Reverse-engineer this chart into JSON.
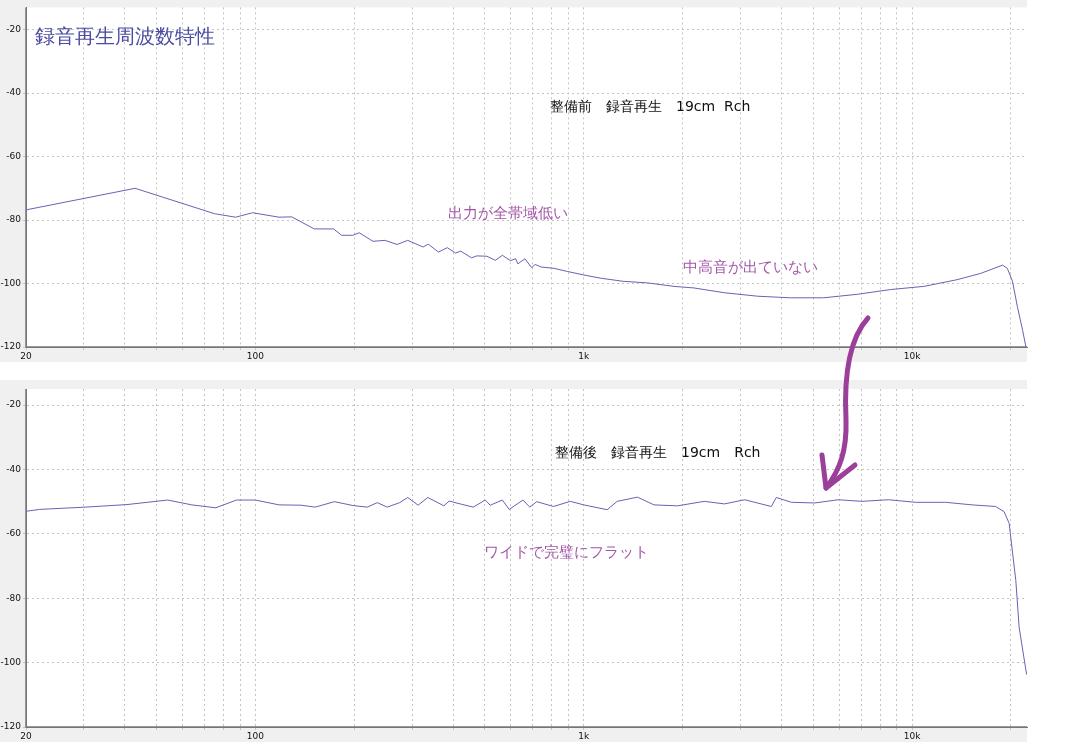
{
  "chart_data": [
    {
      "type": "line",
      "title": "録音再生周波数特性",
      "annotations": [
        "整備前　録音再生　19cm  Rch",
        "出力が全帯域低い",
        "中高音が出ていない"
      ],
      "x": [
        20,
        43,
        75,
        87,
        98,
        118,
        129,
        151,
        173,
        183,
        198,
        207,
        228,
        248,
        270,
        291,
        324,
        336,
        361,
        384,
        407,
        422,
        455,
        472,
        507,
        538,
        565,
        598,
        620,
        630,
        662,
        694,
        711,
        742,
        811,
        891,
        1000,
        1123,
        1318,
        1563,
        1884,
        2168,
        2679,
        3388,
        4266,
        5377,
        6805,
        8600,
        10865,
        13710,
        16200,
        18870,
        19510,
        20230,
        20960,
        21720,
        22230
      ],
      "series": [
        {
          "color": "#6464b4",
          "values": [
            -76.8,
            -70,
            -78,
            -79.1,
            -77.7,
            -79.1,
            -79,
            -82.8,
            -82.8,
            -84.8,
            -84.8,
            -84,
            -86.7,
            -86.4,
            -87.7,
            -86.4,
            -88.5,
            -87.6,
            -90.1,
            -88.7,
            -90.4,
            -89.8,
            -91.9,
            -91.3,
            -91.4,
            -92.7,
            -91.1,
            -92.8,
            -92.2,
            -93.8,
            -92.2,
            -95,
            -94,
            -94.8,
            -95.2,
            -96.2,
            -97.3,
            -98.3,
            -99.3,
            -99.8,
            -100.9,
            -101.4,
            -102.9,
            -104,
            -104.5,
            -104.5,
            -103.4,
            -101.9,
            -100.9,
            -98.8,
            -96.8,
            -94.2,
            -95.2,
            -99.3,
            -107.5,
            -114.7,
            -120
          ]
        }
      ],
      "xlim": [
        20,
        22400
      ],
      "ylim": [
        -120,
        -13
      ],
      "xticks": [
        {
          "value": 20,
          "label": "20"
        },
        {
          "value": 30,
          "label": null
        },
        {
          "value": 40,
          "label": null
        },
        {
          "value": 50,
          "label": null
        },
        {
          "value": 60,
          "label": null
        },
        {
          "value": 70,
          "label": null
        },
        {
          "value": 80,
          "label": null
        },
        {
          "value": 90,
          "label": null
        },
        {
          "value": 100,
          "label": "100"
        },
        {
          "value": 200,
          "label": null
        },
        {
          "value": 300,
          "label": null
        },
        {
          "value": 400,
          "label": null
        },
        {
          "value": 500,
          "label": null
        },
        {
          "value": 600,
          "label": null
        },
        {
          "value": 700,
          "label": null
        },
        {
          "value": 800,
          "label": null
        },
        {
          "value": 900,
          "label": null
        },
        {
          "value": 1000,
          "label": "1k"
        },
        {
          "value": 2000,
          "label": null
        },
        {
          "value": 3000,
          "label": null
        },
        {
          "value": 4000,
          "label": null
        },
        {
          "value": 5000,
          "label": null
        },
        {
          "value": 6000,
          "label": null
        },
        {
          "value": 7000,
          "label": null
        },
        {
          "value": 8000,
          "label": null
        },
        {
          "value": 9000,
          "label": null
        },
        {
          "value": 10000,
          "label": "10k"
        },
        {
          "value": 20000,
          "label": null
        }
      ],
      "yticks": [
        -120,
        -100,
        -80,
        -60,
        -40,
        -20
      ],
      "log": "x",
      "grid": true,
      "line_style": "solid",
      "marker": "none"
    },
    {
      "type": "line",
      "annotations": [
        "整備後　録音再生　19cm　Rch",
        "ワイドで完璧にフラット"
      ],
      "x": [
        20,
        22,
        30.3,
        40.6,
        54,
        64,
        75.7,
        87.5,
        100,
        118,
        138,
        152,
        174,
        198,
        219,
        235,
        252,
        275,
        291,
        313,
        335,
        375,
        389,
        424,
        461,
        501,
        519,
        565,
        593,
        653,
        685,
        719,
        809,
        910,
        1000,
        1179,
        1264,
        1457,
        1637,
        1930,
        2329,
        2683,
        3093,
        3726,
        3861,
        4289,
        5058,
        5960,
        7027,
        8478,
        10240,
        12650,
        15250,
        17970,
        19070,
        19760,
        20710,
        21200,
        22340
      ],
      "series": [
        {
          "color": "#6464b4",
          "values": [
            -53,
            -52.4,
            -51.7,
            -50.9,
            -49.5,
            -51,
            -51.9,
            -49.5,
            -49.5,
            -51,
            -51.1,
            -51.7,
            -50,
            -51.2,
            -51.7,
            -50.3,
            -51.7,
            -50.3,
            -48.7,
            -51.1,
            -48.7,
            -51.3,
            -49.8,
            -50.8,
            -51.7,
            -49.5,
            -51.1,
            -49.5,
            -52.4,
            -49.5,
            -51.7,
            -50,
            -51.5,
            -49.9,
            -51,
            -52.5,
            -49.9,
            -48.6,
            -51,
            -51.3,
            -49.9,
            -50.7,
            -49.4,
            -51.5,
            -48.7,
            -50.2,
            -50.4,
            -49.4,
            -49.9,
            -49.4,
            -50.2,
            -50.2,
            -51,
            -51.5,
            -53.1,
            -56.7,
            -74.5,
            -89.1,
            -103.7
          ]
        }
      ],
      "xlim": [
        20,
        22400
      ],
      "ylim": [
        -120,
        -15
      ],
      "xticks": [
        {
          "value": 20,
          "label": "20"
        },
        {
          "value": 30,
          "label": null
        },
        {
          "value": 40,
          "label": null
        },
        {
          "value": 50,
          "label": null
        },
        {
          "value": 60,
          "label": null
        },
        {
          "value": 70,
          "label": null
        },
        {
          "value": 80,
          "label": null
        },
        {
          "value": 90,
          "label": null
        },
        {
          "value": 100,
          "label": "100"
        },
        {
          "value": 200,
          "label": null
        },
        {
          "value": 300,
          "label": null
        },
        {
          "value": 400,
          "label": null
        },
        {
          "value": 500,
          "label": null
        },
        {
          "value": 600,
          "label": null
        },
        {
          "value": 700,
          "label": null
        },
        {
          "value": 800,
          "label": null
        },
        {
          "value": 900,
          "label": null
        },
        {
          "value": 1000,
          "label": "1k"
        },
        {
          "value": 2000,
          "label": null
        },
        {
          "value": 3000,
          "label": null
        },
        {
          "value": 4000,
          "label": null
        },
        {
          "value": 5000,
          "label": null
        },
        {
          "value": 6000,
          "label": null
        },
        {
          "value": 7000,
          "label": null
        },
        {
          "value": 8000,
          "label": null
        },
        {
          "value": 9000,
          "label": null
        },
        {
          "value": 10000,
          "label": "10k"
        },
        {
          "value": 20000,
          "label": null
        }
      ],
      "yticks": [
        -120,
        -100,
        -80,
        -60,
        -40,
        -20
      ],
      "log": "x",
      "grid": true,
      "line_style": "solid",
      "marker": "none"
    }
  ]
}
